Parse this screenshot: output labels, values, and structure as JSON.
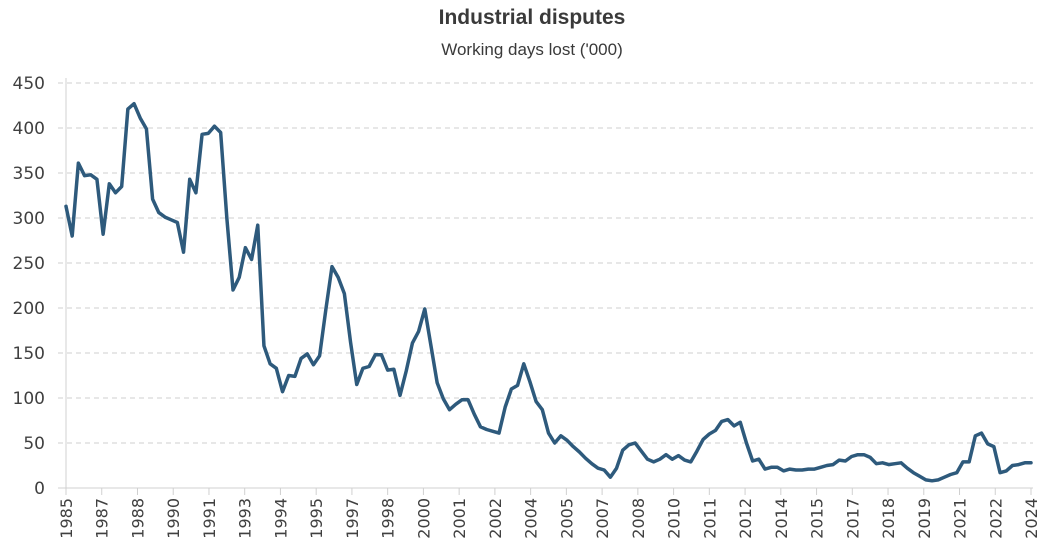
{
  "chart_data": {
    "type": "line",
    "title": "Industrial disputes",
    "subtitle": "Working days lost ('000)",
    "xlabel": "",
    "ylabel": "",
    "ylim": [
      0,
      450
    ],
    "yticks": [
      0,
      50,
      100,
      150,
      200,
      250,
      300,
      350,
      400,
      450
    ],
    "grid": true,
    "legend": "none",
    "x_start": "1985 Q1",
    "x_end": "2024 Q1",
    "frequency": "quarterly",
    "xtick_labels": [
      "1985",
      "1987",
      "1988",
      "1990",
      "1991",
      "1993",
      "1994",
      "1995",
      "1997",
      "1998",
      "2000",
      "2001",
      "2002",
      "2004",
      "2005",
      "2007",
      "2008",
      "2010",
      "2011",
      "2012",
      "2014",
      "2015",
      "2017",
      "2018",
      "2019",
      "2021",
      "2022",
      "2024"
    ],
    "series": [
      {
        "name": "Working days lost ('000)",
        "color": "#2E5A7C",
        "values": [
          313,
          280,
          361,
          347,
          348,
          343,
          282,
          338,
          328,
          335,
          421,
          427,
          411,
          399,
          321,
          306,
          301,
          298,
          295,
          262,
          343,
          328,
          393,
          394,
          402,
          395,
          300,
          220,
          234,
          267,
          254,
          292,
          158,
          138,
          133,
          107,
          125,
          124,
          144,
          149,
          137,
          147,
          198,
          246,
          234,
          216,
          162,
          115,
          133,
          135,
          148,
          148,
          131,
          132,
          103,
          130,
          161,
          174,
          199,
          158,
          117,
          99,
          87,
          93,
          98,
          98,
          82,
          68,
          65,
          63,
          61,
          90,
          110,
          114,
          138,
          118,
          96,
          87,
          61,
          50,
          58,
          53,
          46,
          40,
          33,
          27,
          22,
          20,
          12,
          22,
          42,
          48,
          50,
          41,
          32,
          29,
          32,
          37,
          32,
          36,
          31,
          29,
          41,
          54,
          60,
          64,
          74,
          76,
          69,
          73,
          50,
          30,
          32,
          21,
          23,
          23,
          19,
          21,
          20,
          20,
          21,
          21,
          23,
          25,
          26,
          31,
          30,
          35,
          37,
          37,
          34,
          27,
          28,
          26,
          27,
          28,
          22,
          17,
          13,
          9,
          8,
          9,
          12,
          15,
          17,
          29,
          29,
          58,
          61,
          49,
          46,
          17,
          19,
          25,
          26,
          28,
          28
        ]
      }
    ]
  }
}
